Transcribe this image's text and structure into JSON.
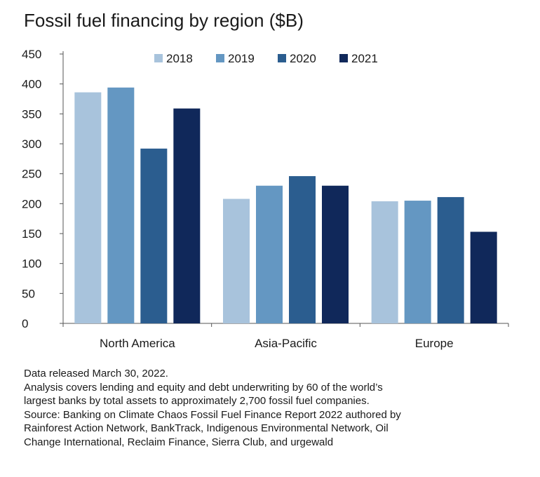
{
  "chart_data": {
    "type": "bar",
    "title": "Fossil fuel financing by region ($B)",
    "xlabel": "",
    "ylabel": "",
    "categories": [
      "North America",
      "Asia-Pacific",
      "Europe"
    ],
    "series": [
      {
        "name": "2018",
        "values": [
          386,
          208,
          204
        ],
        "color": "#a8c3dc"
      },
      {
        "name": "2019",
        "values": [
          394,
          230,
          205
        ],
        "color": "#6497c2"
      },
      {
        "name": "2020",
        "values": [
          292,
          246,
          211
        ],
        "color": "#2b5d8f"
      },
      {
        "name": "2021",
        "values": [
          359,
          230,
          153
        ],
        "color": "#10285a"
      }
    ],
    "ylim": [
      0,
      450
    ],
    "yticks": [
      0,
      50,
      100,
      150,
      200,
      250,
      300,
      350,
      400,
      450
    ],
    "grid": false,
    "legend": "top-center"
  },
  "notes": [
    "Data released March 30, 2022.",
    "Analysis covers lending and equity and debt underwriting by 60 of the world’s",
    "largest banks by total assets to approximately 2,700 fossil fuel companies.",
    "Source: Banking on Climate Chaos Fossil Fuel Finance Report 2022 authored by",
    "Rainforest Action Network, BankTrack, Indigenous Environmental Network, Oil",
    "Change International, Reclaim Finance, Sierra Club, and urgewald"
  ]
}
